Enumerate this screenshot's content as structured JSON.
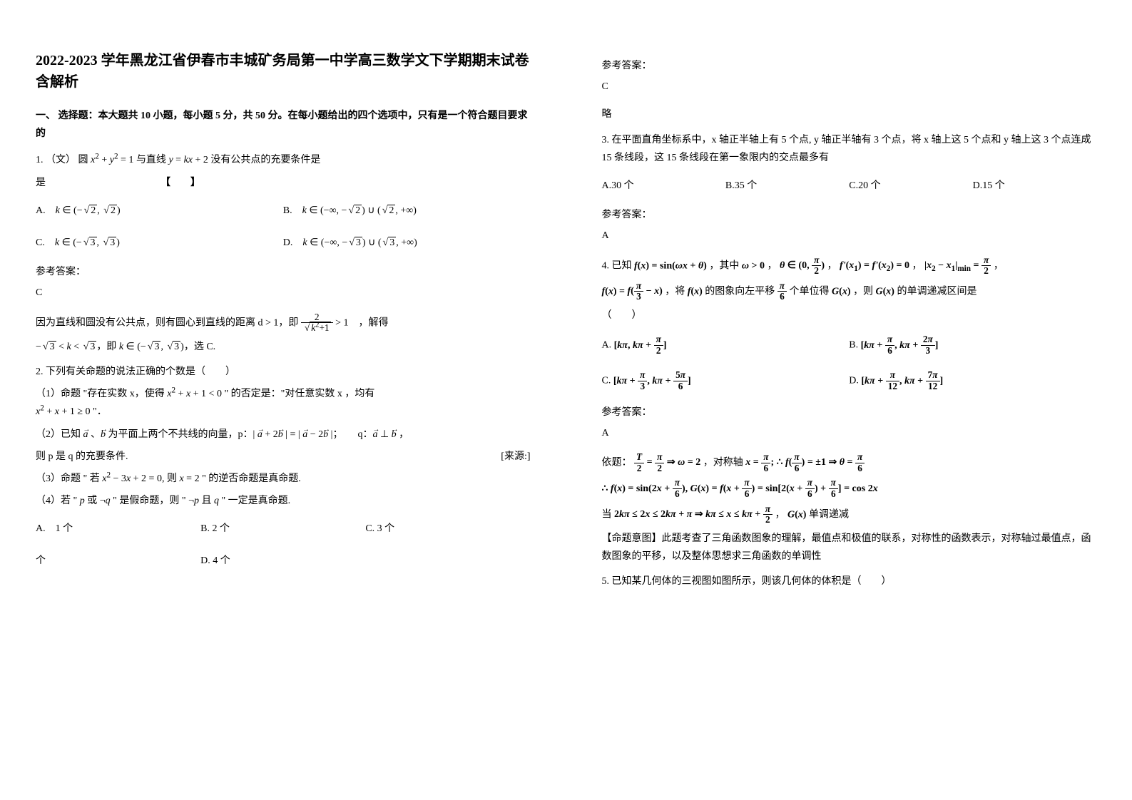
{
  "title": "2022-2023 学年黑龙江省伊春市丰城矿务局第一中学高三数学文下学期期末试卷含解析",
  "section1": "一、 选择题：本大题共 10 小题，每小题 5 分，共 50 分。在每小题给出的四个选项中，只有是一个符合题目要求的",
  "q1": {
    "stem1": "1. （文） 圆",
    "stem2": "x² + y² = 1",
    "stem3": " 与直线 ",
    "stem4": "y = kx + 2",
    "stem5": " 没有公共点的充要条件是",
    "bracket": "【　　】",
    "A_pre": "A.　",
    "A": "k ∈ (−√2, √2)",
    "B_pre": "B.　",
    "B": "k ∈ (−∞, −√2) ∪ (√2, +∞)",
    "C_pre": "C.　",
    "C": "k ∈ (−√3, √3)",
    "D_pre": "D.　",
    "D": "k ∈ (−∞, −√3) ∪ (√3, +∞)",
    "ans_label": "参考答案：",
    "ans": "C",
    "expl1": "因为直线和圆没有公共点，则有圆心到直线的距离 d > 1，即 ",
    "expl2": " > 1　，解得",
    "expl3": "−√3 < k < √3，即 k ∈ (−√3, √3)，选 C."
  },
  "q2": {
    "stem": "2. 下列有关命题的说法正确的个数是（　　）",
    "p1a": "（1）命题 \"存在实数 x，使得 ",
    "p1b": "x² + x + 1 < 0",
    "p1c": " \" 的否定是：\"对任意实数 x ，均有 ",
    "p1d": "x² + x + 1 ≥ 0",
    "p1e": " \"．",
    "p2a": "（2）已知 ",
    "p2b": "、",
    "p2c": " 为平面上两个不共线的向量，p：| ",
    "p2d": " + 2",
    "p2e": " | = | ",
    "p2f": " − 2",
    "p2g": " |；　　q：",
    "p2h": " ⊥ ",
    "p2i": "，",
    "p2_tail": "则 p 是 q 的充要条件.",
    "p2_src": "[来源:]",
    "p3a": "（3）命题 \" ",
    "p3b": "若 x² − 3x + 2 = 0, 则 x = 2",
    "p3c": " \" 的逆否命题是真命题.",
    "p4a": "（4）若 \" ",
    "p4b": "p 或 ¬q",
    "p4c": " \" 是假命题，则 \" ",
    "p4d": "¬p 且 q",
    "p4e": " \" 一定是真命题.",
    "A": "A.　1 个",
    "B": "B. 2 个",
    "C": "C. 3 个",
    "D": "D. 4 个",
    "ans_label": "参考答案：",
    "ans": "C",
    "ans2": "略"
  },
  "q3": {
    "stem": "3. 在平面直角坐标系中，x 轴正半轴上有 5 个点, y 轴正半轴有 3 个点，将 x 轴上这 5 个点和 y 轴上这 3 个点连成 15 条线段，这 15 条线段在第一象限内的交点最多有",
    "A": "A.30 个",
    "B": "B.35 个",
    "C": "C.20 个",
    "D": "D.15 个",
    "ans_label": "参考答案：",
    "ans": "A"
  },
  "q4": {
    "pre": "4. 已知 ",
    "f1": "f(x) = sin(ωx + θ)",
    "t1": "，其中 ",
    "f2": "ω > 0",
    "t2": "，",
    "f3": "θ ∈ (0, π/2)",
    "t3": "，",
    "f4": "f'(x₁) = f'(x₂) = 0",
    "t4": "，",
    "f5": "|x₂ − x₁|min = π/2",
    "t5": "，",
    "line2a": "f(x) = ",
    "line2b": "f(π/3 − x)",
    "line2c": "，将 ",
    "line2d": "f(x)",
    "line2e": " 的图象向左平移 ",
    "line2f": "π/6",
    "line2g": " 个单位得 ",
    "line2h": "G(x)",
    "line2i": "，则 ",
    "line2j": "G(x)",
    "line2k": " 的单调递减区间是",
    "paren": "（　　）",
    "A_pre": "A. ",
    "A": "[kπ, kπ + π/2]",
    "B_pre": "B. ",
    "B": "[kπ + π/6, kπ + 2π/3]",
    "C_pre": "C. ",
    "C": "[kπ + π/3, kπ + 5π/6]",
    "D_pre": "D. ",
    "D": "[kπ + π/12, kπ + 7π/12]",
    "ans_label": "参考答案：",
    "ans": "A",
    "expl_pre": "依题：",
    "expl1": "T/2 = π/2 ⇒ ω = 2",
    "expl_mid": "，对称轴 ",
    "expl2": "x = π/6; ∴ f(π/6) = ±1 ⇒ θ = π/6",
    "expl3": "∴ f(x) = sin(2x + π/6), G(x) = f(x + π/6) = sin[2(x + π/6) + π/6] = cos 2x",
    "expl4_pre": "当 ",
    "expl4a": "2kπ ≤ 2x ≤ 2kπ + π ⇒ kπ ≤ x ≤ kπ + π/2",
    "expl4_mid": "，",
    "expl4b": "G(x)",
    "expl4_post": " 单调递减",
    "note1": "【命题意图】此题考查了三角函数图象的理解，最值点和极值的联系，对称性的函数表示，对称轴过最值点，函数图象的平移，以及整体思想求三角函数的单调性"
  },
  "q5": {
    "stem": "5. 已知某几何体的三视图如图所示，则该几何体的体积是（　　）"
  }
}
